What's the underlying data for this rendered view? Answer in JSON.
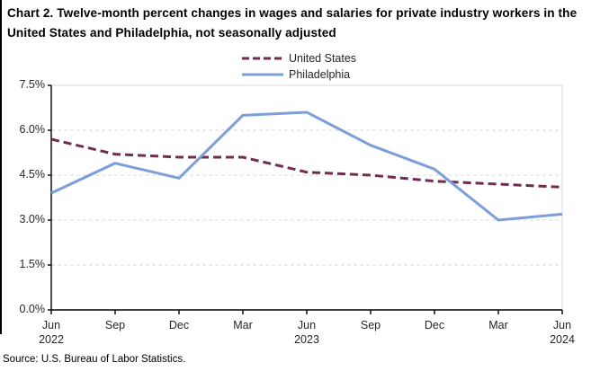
{
  "title": "Chart 2. Twelve-month percent changes in wages and salaries for private industry workers in the United States and Philadelphia, not seasonally adjusted",
  "source": "Source: U.S. Bureau of Labor Statistics.",
  "colors": {
    "united_states_line": "#722C4E",
    "philadelphia_line": "#7C9EDB",
    "gridline": "#D9D9D9",
    "plot_border": "#D9D9D9",
    "axis": "#000000"
  },
  "chart_data": {
    "type": "line",
    "title": "Chart 2. Twelve-month percent changes in wages and salaries for private industry workers in the United States and Philadelphia, not seasonally adjusted",
    "categories": [
      "Jun 2022",
      "Sep 2022",
      "Dec 2022",
      "Mar 2023",
      "Jun 2023",
      "Sep 2023",
      "Dec 2023",
      "Mar 2024",
      "Jun 2024"
    ],
    "x_tick_labels": [
      [
        "Jun",
        "2022"
      ],
      [
        "Sep"
      ],
      [
        "Dec"
      ],
      [
        "Mar"
      ],
      [
        "Jun",
        "2023"
      ],
      [
        "Sep"
      ],
      [
        "Dec"
      ],
      [
        "Mar"
      ],
      [
        "Jun",
        "2024"
      ]
    ],
    "y_tick_labels": [
      "0.0%",
      "1.5%",
      "3.0%",
      "4.5%",
      "6.0%",
      "7.5%"
    ],
    "ylabel": "",
    "xlabel": "",
    "ylim": [
      0,
      7.5
    ],
    "y_step": 1.5,
    "grid": "horizontal-dashed",
    "legend_position": "top-center",
    "series": [
      {
        "name": "United States",
        "style": "dashed",
        "color": "#722C4E",
        "values": [
          5.7,
          5.2,
          5.1,
          5.1,
          4.6,
          4.5,
          4.3,
          4.2,
          4.1
        ]
      },
      {
        "name": "Philadelphia",
        "style": "solid",
        "color": "#7C9EDB",
        "values": [
          3.9,
          4.9,
          4.4,
          6.5,
          6.6,
          5.5,
          4.7,
          3.0,
          3.2
        ]
      }
    ]
  }
}
